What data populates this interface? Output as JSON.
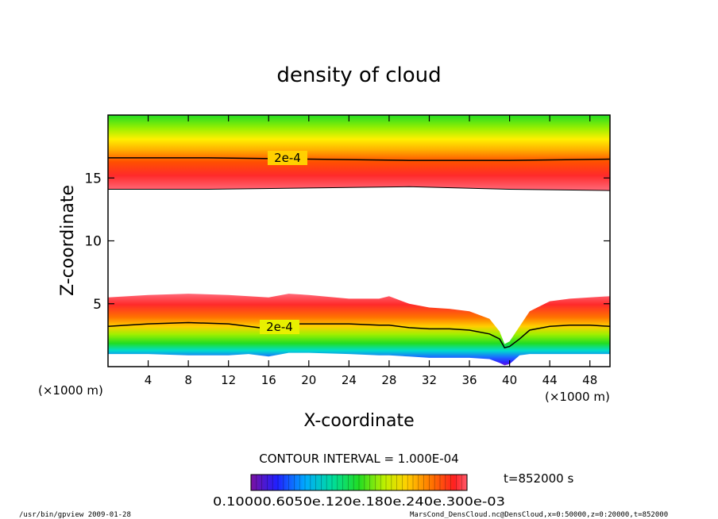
{
  "chart_data": {
    "type": "heatmap",
    "title": "density of cloud",
    "xlabel": "X-coordinate",
    "ylabel": "Z-coordinate",
    "x_unit": "(×1000 m)",
    "z_unit": "(×1000 m)",
    "xlim": [
      0,
      50
    ],
    "ylim": [
      0,
      20
    ],
    "xticks": [
      4,
      8,
      12,
      16,
      20,
      24,
      28,
      32,
      36,
      40,
      44,
      48
    ],
    "yticks": [
      5,
      10,
      15
    ],
    "contour_labels": [
      "2e-4",
      "2e-4"
    ],
    "contour_interval_text": "CONTOUR INTERVAL = 1.000E-04",
    "time_text": "t=852000 s",
    "colorbar_text": "0.10000.6050e.120e.180e.240e.300e-03",
    "footer_left": "/usr/bin/gpview   2009-01-28",
    "footer_right": "MarsCond_DensCloud.nc@DensCloud,x=0:50000,z=0:20000,t=852000",
    "upper_layer": {
      "base_x": [
        0,
        10,
        20,
        30,
        40,
        50
      ],
      "base_z": [
        14.1,
        14.1,
        14.2,
        14.3,
        14.1,
        14.0
      ],
      "contour_2e4_z": [
        16.6,
        16.6,
        16.5,
        16.4,
        16.4,
        16.5
      ]
    },
    "lower_layer": {
      "x": [
        0,
        4,
        8,
        12,
        14,
        16,
        18,
        20,
        24,
        27,
        28,
        30,
        32,
        34,
        36,
        38,
        39,
        39.5,
        40,
        41,
        42,
        44,
        46,
        48,
        50
      ],
      "top_z": [
        5.5,
        5.7,
        5.8,
        5.7,
        5.6,
        5.5,
        5.8,
        5.7,
        5.4,
        5.4,
        5.6,
        5.0,
        4.7,
        4.6,
        4.4,
        3.8,
        2.8,
        1.8,
        2.0,
        3.2,
        4.4,
        5.2,
        5.4,
        5.5,
        5.6
      ],
      "contour_2e4_z": [
        3.2,
        3.4,
        3.5,
        3.4,
        3.2,
        3.0,
        3.4,
        3.4,
        3.4,
        3.3,
        3.3,
        3.1,
        3.0,
        3.0,
        2.9,
        2.6,
        2.2,
        1.5,
        1.6,
        2.2,
        2.9,
        3.2,
        3.3,
        3.3,
        3.2
      ],
      "base_z": [
        1.0,
        1.0,
        0.9,
        0.9,
        1.0,
        0.8,
        1.1,
        1.1,
        1.0,
        0.9,
        0.9,
        0.8,
        0.7,
        0.7,
        0.7,
        0.6,
        0.3,
        0.1,
        0.2,
        0.9,
        1.0,
        1.0,
        1.0,
        1.0,
        1.0
      ]
    }
  }
}
